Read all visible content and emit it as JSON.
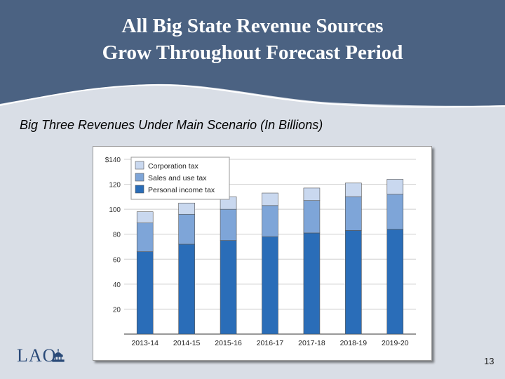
{
  "slide": {
    "title_line1": "All Big State Revenue Sources",
    "title_line2": "Grow Throughout Forecast Period",
    "subtitle": "Big Three Revenues Under Main Scenario (In Billions)",
    "logo_text": "LAO",
    "page_number": "13"
  },
  "colors": {
    "header": "#4b6282",
    "background": "#d9dee6",
    "personal_income_tax": "#2a6db8",
    "sales_and_use_tax": "#7ea5d8",
    "corporation_tax": "#c9d8ef"
  },
  "chart_data": {
    "type": "bar",
    "stacked": true,
    "title": "Big Three Revenues Under Main Scenario (In Billions)",
    "xlabel": "",
    "ylabel": "",
    "ylim": [
      0,
      140
    ],
    "yticks": [
      20,
      40,
      60,
      80,
      100,
      120,
      140
    ],
    "ytick_labels": [
      "20",
      "40",
      "60",
      "80",
      "100",
      "120",
      "$140"
    ],
    "grid": true,
    "legend_position": "top-left",
    "categories": [
      "2013-14",
      "2014-15",
      "2015-16",
      "2016-17",
      "2017-18",
      "2018-19",
      "2019-20"
    ],
    "series": [
      {
        "name": "Personal income tax",
        "values": [
          66,
          72,
          75,
          78,
          81,
          83,
          84
        ]
      },
      {
        "name": "Sales and use tax",
        "values": [
          23,
          24,
          25,
          25,
          26,
          27,
          28
        ]
      },
      {
        "name": "Corporation tax",
        "values": [
          9,
          9,
          10,
          10,
          10,
          11,
          12
        ]
      }
    ]
  }
}
